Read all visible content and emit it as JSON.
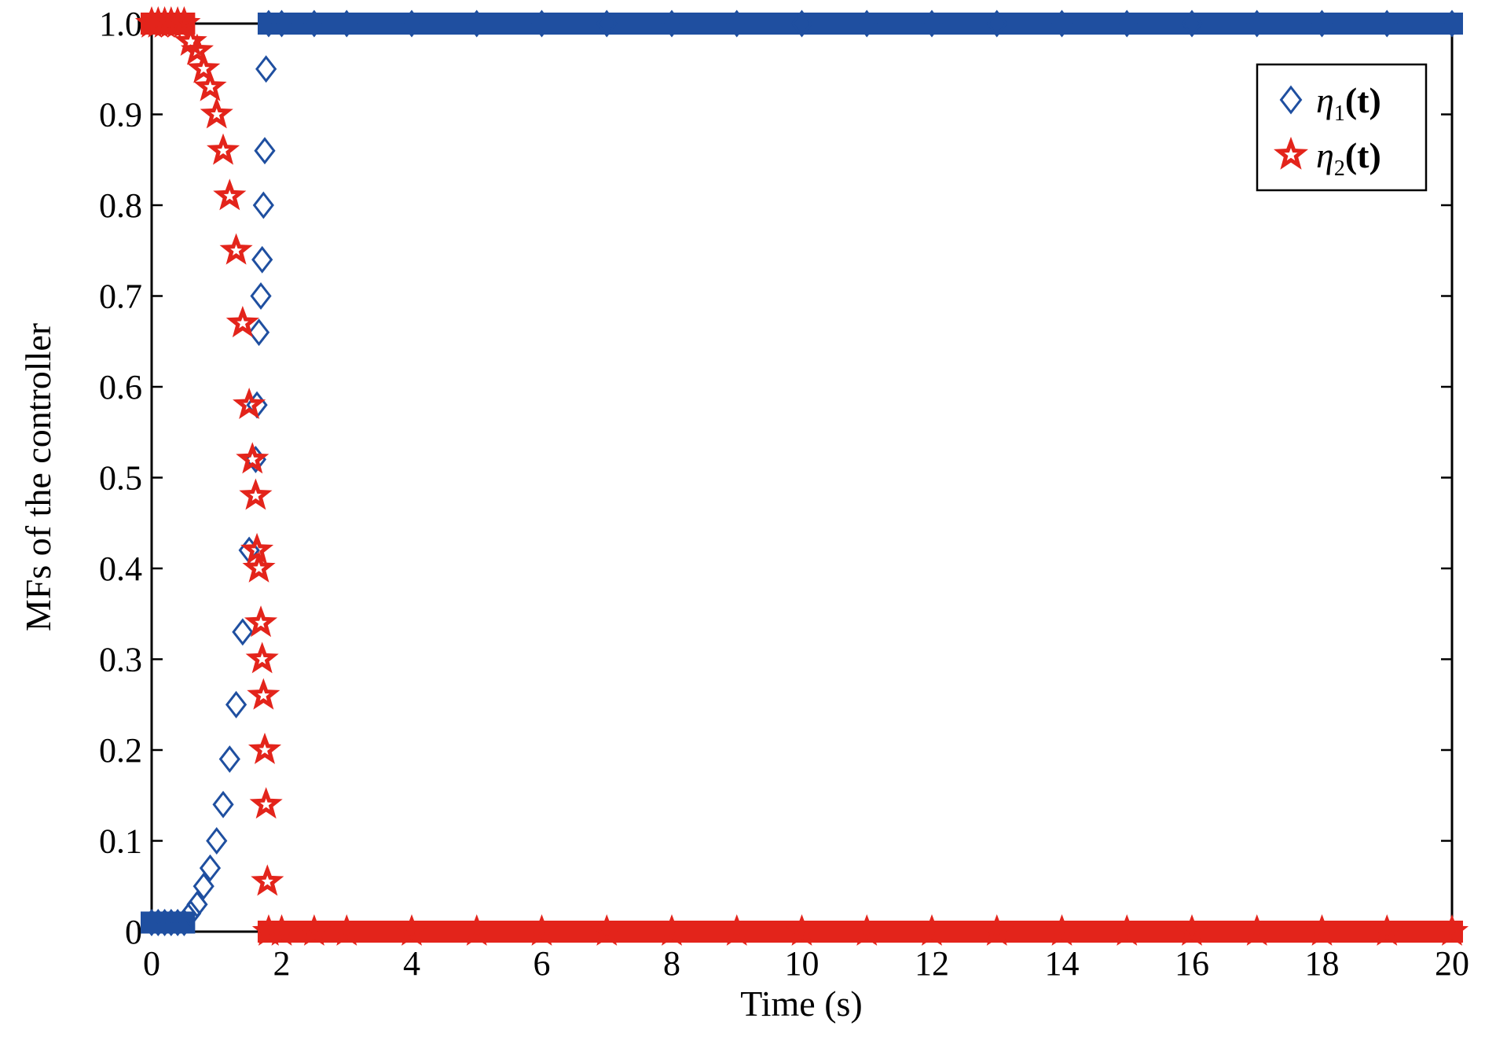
{
  "chart_data": {
    "type": "scatter",
    "xlabel": "Time (s)",
    "ylabel": "MFs of the controller",
    "xlim": [
      0,
      20
    ],
    "ylim": [
      0,
      1.0
    ],
    "x_ticks": [
      "0",
      "2",
      "4",
      "6",
      "8",
      "10",
      "12",
      "14",
      "16",
      "18",
      "20"
    ],
    "y_ticks": [
      "0",
      "0.1",
      "0.2",
      "0.3",
      "0.4",
      "0.5",
      "0.6",
      "0.7",
      "0.8",
      "0.9",
      "1.0"
    ],
    "grid": false,
    "legend_position": "top-right",
    "series": [
      {
        "name": "η1(t)",
        "legend_base": "η",
        "legend_sub": "1",
        "legend_arg": "(t)",
        "marker": "diamond",
        "color": "#1f4fa0",
        "points": [
          [
            0.0,
            0.01
          ],
          [
            0.1,
            0.01
          ],
          [
            0.2,
            0.01
          ],
          [
            0.3,
            0.01
          ],
          [
            0.4,
            0.01
          ],
          [
            0.5,
            0.01
          ],
          [
            0.6,
            0.02
          ],
          [
            0.7,
            0.03
          ],
          [
            0.8,
            0.05
          ],
          [
            0.9,
            0.07
          ],
          [
            1.0,
            0.1
          ],
          [
            1.1,
            0.14
          ],
          [
            1.2,
            0.19
          ],
          [
            1.3,
            0.25
          ],
          [
            1.4,
            0.33
          ],
          [
            1.5,
            0.42
          ],
          [
            1.6,
            0.52
          ],
          [
            1.62,
            0.58
          ],
          [
            1.65,
            0.66
          ],
          [
            1.68,
            0.7
          ],
          [
            1.7,
            0.74
          ],
          [
            1.72,
            0.8
          ],
          [
            1.74,
            0.86
          ],
          [
            1.76,
            0.95
          ],
          [
            1.8,
            1.0
          ],
          [
            2.0,
            1.0
          ],
          [
            2.5,
            1.0
          ],
          [
            3.0,
            1.0
          ],
          [
            4.0,
            1.0
          ],
          [
            5.0,
            1.0
          ],
          [
            6.0,
            1.0
          ],
          [
            7.0,
            1.0
          ],
          [
            8.0,
            1.0
          ],
          [
            9.0,
            1.0
          ],
          [
            10.0,
            1.0
          ],
          [
            11.0,
            1.0
          ],
          [
            12.0,
            1.0
          ],
          [
            13.0,
            1.0
          ],
          [
            14.0,
            1.0
          ],
          [
            15.0,
            1.0
          ],
          [
            16.0,
            1.0
          ],
          [
            17.0,
            1.0
          ],
          [
            18.0,
            1.0
          ],
          [
            19.0,
            1.0
          ],
          [
            20.0,
            1.0
          ]
        ]
      },
      {
        "name": "η2(t)",
        "legend_base": "η",
        "legend_sub": "2",
        "legend_arg": "(t)",
        "marker": "star",
        "color": "#e3241b",
        "points": [
          [
            0.0,
            1.0
          ],
          [
            0.1,
            1.0
          ],
          [
            0.2,
            1.0
          ],
          [
            0.3,
            1.0
          ],
          [
            0.4,
            1.0
          ],
          [
            0.5,
            1.0
          ],
          [
            0.6,
            0.98
          ],
          [
            0.7,
            0.97
          ],
          [
            0.8,
            0.95
          ],
          [
            0.9,
            0.93
          ],
          [
            1.0,
            0.9
          ],
          [
            1.1,
            0.86
          ],
          [
            1.2,
            0.81
          ],
          [
            1.3,
            0.75
          ],
          [
            1.4,
            0.67
          ],
          [
            1.5,
            0.58
          ],
          [
            1.55,
            0.52
          ],
          [
            1.6,
            0.48
          ],
          [
            1.62,
            0.42
          ],
          [
            1.65,
            0.4
          ],
          [
            1.68,
            0.34
          ],
          [
            1.7,
            0.3
          ],
          [
            1.72,
            0.26
          ],
          [
            1.74,
            0.2
          ],
          [
            1.76,
            0.14
          ],
          [
            1.78,
            0.055
          ],
          [
            1.8,
            0.0
          ],
          [
            2.0,
            0.0
          ],
          [
            2.5,
            0.0
          ],
          [
            3.0,
            0.0
          ],
          [
            4.0,
            0.0
          ],
          [
            5.0,
            0.0
          ],
          [
            6.0,
            0.0
          ],
          [
            7.0,
            0.0
          ],
          [
            8.0,
            0.0
          ],
          [
            9.0,
            0.0
          ],
          [
            10.0,
            0.0
          ],
          [
            11.0,
            0.0
          ],
          [
            12.0,
            0.0
          ],
          [
            13.0,
            0.0
          ],
          [
            14.0,
            0.0
          ],
          [
            15.0,
            0.0
          ],
          [
            16.0,
            0.0
          ],
          [
            17.0,
            0.0
          ],
          [
            18.0,
            0.0
          ],
          [
            19.0,
            0.0
          ],
          [
            20.0,
            0.0
          ]
        ]
      }
    ]
  }
}
